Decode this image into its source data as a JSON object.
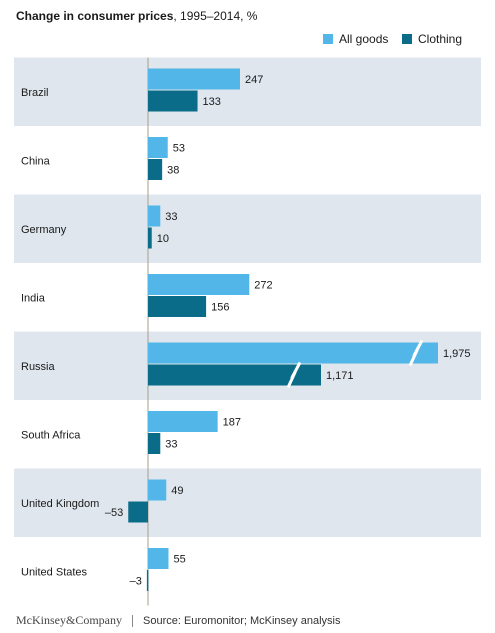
{
  "chart_data": {
    "type": "bar",
    "orientation": "horizontal",
    "title": "Change in consumer prices",
    "subtitle": ", 1995–2014, %",
    "categories": [
      "Brazil",
      "China",
      "Germany",
      "India",
      "Russia",
      "South Africa",
      "United Kingdom",
      "United States"
    ],
    "series": [
      {
        "name": "All goods",
        "color": "#52b7e8",
        "values": [
          247,
          53,
          33,
          272,
          1975,
          187,
          49,
          55
        ],
        "labels": [
          "247",
          "53",
          "33",
          "272",
          "1,975",
          "187",
          "49",
          "55"
        ]
      },
      {
        "name": "Clothing",
        "color": "#0a6c88",
        "values": [
          133,
          38,
          10,
          156,
          1171,
          33,
          -53,
          -3
        ],
        "labels": [
          "133",
          "38",
          "10",
          "156",
          "1,171",
          "33",
          "–53",
          "–3"
        ]
      }
    ],
    "axis_break": true,
    "row_shading": [
      "#dfe6ed",
      "#ffffff"
    ],
    "legend_position": "top-right"
  },
  "footer": {
    "brand": "McKinsey&Company",
    "source": "Source: Euromonitor; McKinsey analysis"
  }
}
